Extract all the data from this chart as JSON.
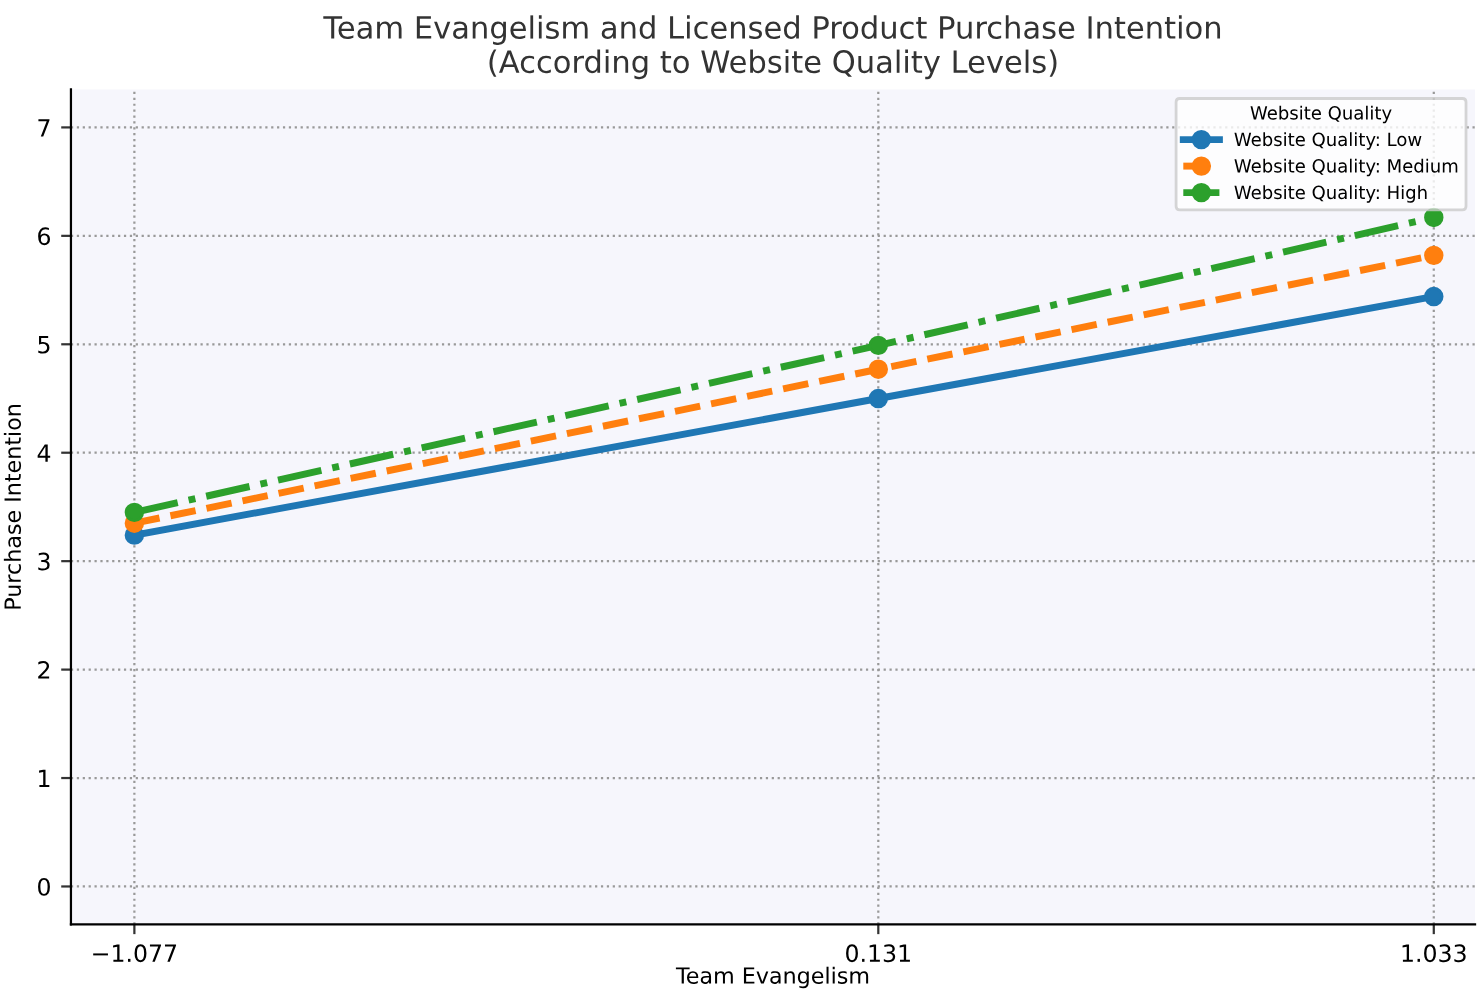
{
  "chart_data": {
    "type": "line",
    "title": "Team Evangelism and Licensed Product Purchase Intention\n(According to Website Quality Levels)",
    "xlabel": "Team Evangelism",
    "ylabel": "Purchase Intention",
    "legend_title": "Website Quality",
    "x": [
      -1.077,
      0.131,
      1.033
    ],
    "series": [
      {
        "name": "Website Quality: Low",
        "color": "#1f77b4",
        "values": [
          3.24,
          4.5,
          5.44
        ],
        "line_style": "solid"
      },
      {
        "name": "Website Quality: Medium",
        "color": "#ff7f0e",
        "values": [
          3.35,
          4.77,
          5.82
        ],
        "line_style": "dashed"
      },
      {
        "name": "Website Quality: High",
        "color": "#2ca02c",
        "values": [
          3.45,
          4.99,
          6.17
        ],
        "line_style": "dashdot"
      }
    ],
    "xlim": [
      -1.18,
      1.1
    ],
    "ylim": [
      -0.35,
      7.35
    ],
    "xticks": [
      {
        "value": -1.077,
        "label": "−1.077"
      },
      0.131,
      1.033
    ],
    "yticks": [
      0,
      1,
      2,
      3,
      4,
      5,
      6,
      7
    ],
    "grid": true,
    "legend": "top right",
    "marker": "circle"
  }
}
